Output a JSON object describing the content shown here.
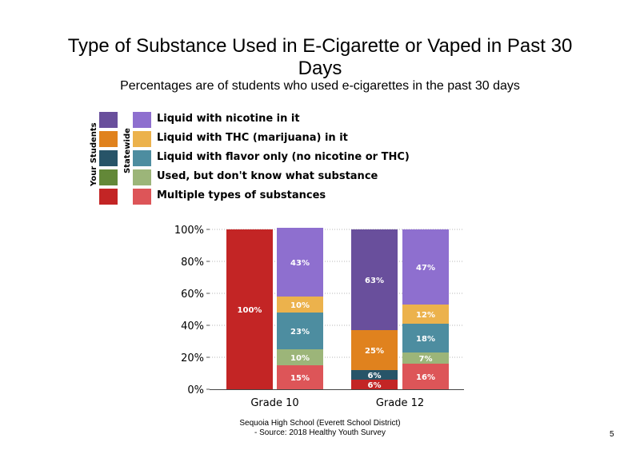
{
  "slide": {
    "title_line1": "Type of Substance Used in E-Cigarette or Vaped in Past 30",
    "title_line2": "Days",
    "subtitle": "Percentages are of students who used e-cigarettes in the past 30 days",
    "footer_line1": "Sequoia High School (Everett School District)",
    "footer_line2": "- Source: 2018 Healthy Youth Survey",
    "page_number": "5"
  },
  "legend": {
    "your_students_label": "Your Students",
    "statewide_label": "Statewide",
    "items": [
      {
        "label": "Liquid with nicotine in it",
        "your_color": "#694f9c",
        "state_color": "#8e6fcf"
      },
      {
        "label": "Liquid with THC (marijuana) in it",
        "your_color": "#e0821e",
        "state_color": "#ecb24c"
      },
      {
        "label": "Liquid with flavor only (no nicotine or THC)",
        "your_color": "#275468",
        "state_color": "#4d8da0"
      },
      {
        "label": "Used, but don't know what substance",
        "your_color": "#638838",
        "state_color": "#9cb579"
      },
      {
        "label": "Multiple types of substances",
        "your_color": "#c32525",
        "state_color": "#dd5558"
      }
    ]
  },
  "chart_data": {
    "type": "bar",
    "stacked": true,
    "categories": [
      "Grade 10",
      "Grade 12"
    ],
    "ylim": [
      0,
      100
    ],
    "y_ticks": [
      "0%",
      "20%",
      "40%",
      "60%",
      "80%",
      "100%"
    ],
    "grid": "horizontal dotted",
    "groups": [
      {
        "category": "Grade 10",
        "bars": [
          {
            "source": "Your Students",
            "segments": [
              {
                "substance": "Multiple types of substances",
                "value": 100,
                "label": "100%"
              }
            ]
          },
          {
            "source": "Statewide",
            "segments": [
              {
                "substance": "Multiple types of substances",
                "value": 15,
                "label": "15%"
              },
              {
                "substance": "Used, but don't know what substance",
                "value": 10,
                "label": "10%"
              },
              {
                "substance": "Liquid with flavor only (no nicotine or THC)",
                "value": 23,
                "label": "23%"
              },
              {
                "substance": "Liquid with THC (marijuana) in it",
                "value": 10,
                "label": "10%"
              },
              {
                "substance": "Liquid with nicotine in it",
                "value": 43,
                "label": "43%"
              }
            ]
          }
        ]
      },
      {
        "category": "Grade 12",
        "bars": [
          {
            "source": "Your Students",
            "segments": [
              {
                "substance": "Multiple types of substances",
                "value": 6,
                "label": "6%"
              },
              {
                "substance": "Liquid with flavor only (no nicotine or THC)",
                "value": 6,
                "label": "6%"
              },
              {
                "substance": "Liquid with THC (marijuana) in it",
                "value": 25,
                "label": "25%"
              },
              {
                "substance": "Liquid with nicotine in it",
                "value": 63,
                "label": "63%"
              }
            ]
          },
          {
            "source": "Statewide",
            "segments": [
              {
                "substance": "Multiple types of substances",
                "value": 16,
                "label": "16%"
              },
              {
                "substance": "Used, but don't know what substance",
                "value": 7,
                "label": "7%"
              },
              {
                "substance": "Liquid with flavor only (no nicotine or THC)",
                "value": 18,
                "label": "18%"
              },
              {
                "substance": "Liquid with THC (marijuana) in it",
                "value": 12,
                "label": "12%"
              },
              {
                "substance": "Liquid with nicotine in it",
                "value": 47,
                "label": "47%"
              }
            ]
          }
        ]
      }
    ]
  }
}
